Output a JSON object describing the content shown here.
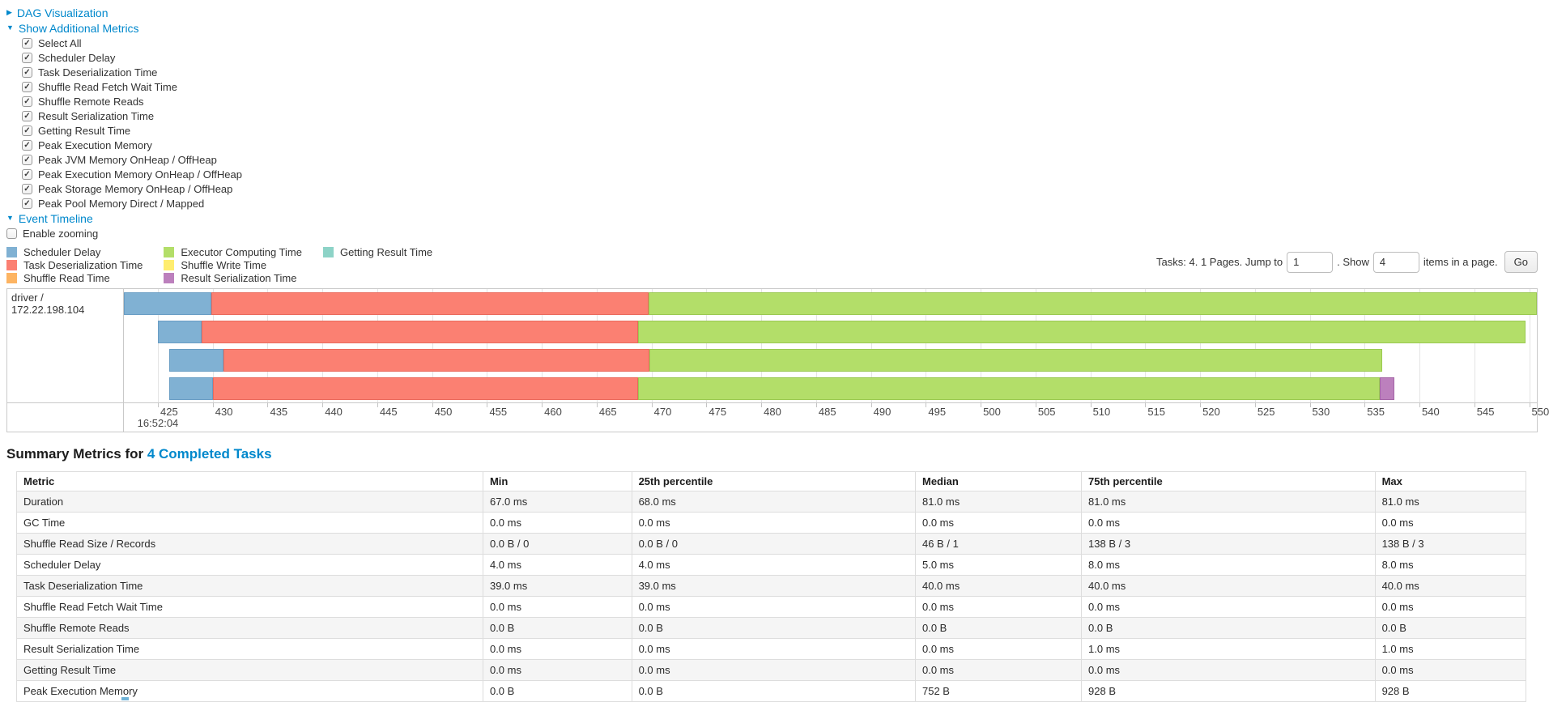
{
  "panels": {
    "dag": {
      "label": "DAG Visualization",
      "arrow": "▶"
    },
    "metrics": {
      "label": "Show Additional Metrics",
      "arrow": "▼",
      "items": [
        {
          "label": "Select All",
          "checked": true
        },
        {
          "label": "Scheduler Delay",
          "checked": true
        },
        {
          "label": "Task Deserialization Time",
          "checked": true
        },
        {
          "label": "Shuffle Read Fetch Wait Time",
          "checked": true
        },
        {
          "label": "Shuffle Remote Reads",
          "checked": true
        },
        {
          "label": "Result Serialization Time",
          "checked": true
        },
        {
          "label": "Getting Result Time",
          "checked": true
        },
        {
          "label": "Peak Execution Memory",
          "checked": true
        },
        {
          "label": "Peak JVM Memory OnHeap / OffHeap",
          "checked": true
        },
        {
          "label": "Peak Execution Memory OnHeap / OffHeap",
          "checked": true
        },
        {
          "label": "Peak Storage Memory OnHeap / OffHeap",
          "checked": true
        },
        {
          "label": "Peak Pool Memory Direct / Mapped",
          "checked": true
        }
      ]
    },
    "timeline": {
      "label": "Event Timeline",
      "arrow": "▼"
    },
    "enable_zooming": {
      "label": "Enable zooming",
      "checked": false
    }
  },
  "pagination": {
    "prefix": "Tasks: 4. 1 Pages. Jump to",
    "jump_value": "1",
    "mid": ". Show",
    "show_value": "4",
    "suffix": "items in a page.",
    "go_label": "Go"
  },
  "chart_data": {
    "type": "timeline-gantt",
    "group": "driver / 172.22.198.104",
    "legend_order": [
      "scheduler_delay",
      "task_deserialization",
      "shuffle_read",
      "executor_computing",
      "shuffle_write",
      "result_serialization",
      "getting_result"
    ],
    "phases": {
      "scheduler_delay": {
        "label": "Scheduler Delay",
        "color": "#80B1D3",
        "border": "#699dc4"
      },
      "task_deserialization": {
        "label": "Task Deserialization Time",
        "color": "#FB8072",
        "border": "#ea6a5c"
      },
      "shuffle_read": {
        "label": "Shuffle Read Time",
        "color": "#FDB462",
        "border": "#eda14c"
      },
      "executor_computing": {
        "label": "Executor Computing Time",
        "color": "#B3DE69",
        "border": "#9ac951"
      },
      "shuffle_write": {
        "label": "Shuffle Write Time",
        "color": "#FFED6F",
        "border": "#e8d659"
      },
      "result_serialization": {
        "label": "Result Serialization Time",
        "color": "#BC80BD",
        "border": "#a465a6"
      },
      "getting_result": {
        "label": "Getting Result Time",
        "color": "#8DD3C7",
        "border": "#74bdb0"
      }
    },
    "x_axis": {
      "min": 421.9,
      "max": 550.7,
      "first_tick": 425,
      "last_tick": 550,
      "tick_step": 5,
      "units": "ms within second shown below first tick",
      "time_label": "16:52:04",
      "grid": true
    },
    "tasks": [
      {
        "segments": [
          {
            "phase": "scheduler_delay",
            "start": 421.9,
            "end": 429.9
          },
          {
            "phase": "task_deserialization",
            "start": 429.9,
            "end": 469.7
          },
          {
            "phase": "executor_computing",
            "start": 469.7,
            "end": 550.7
          }
        ]
      },
      {
        "segments": [
          {
            "phase": "scheduler_delay",
            "start": 425.0,
            "end": 429.0
          },
          {
            "phase": "task_deserialization",
            "start": 429.0,
            "end": 468.8
          },
          {
            "phase": "executor_computing",
            "start": 468.8,
            "end": 549.7
          }
        ]
      },
      {
        "segments": [
          {
            "phase": "scheduler_delay",
            "start": 426.0,
            "end": 431.0
          },
          {
            "phase": "task_deserialization",
            "start": 431.0,
            "end": 469.8
          },
          {
            "phase": "executor_computing",
            "start": 469.8,
            "end": 536.6
          }
        ]
      },
      {
        "segments": [
          {
            "phase": "scheduler_delay",
            "start": 426.0,
            "end": 430.0
          },
          {
            "phase": "task_deserialization",
            "start": 430.0,
            "end": 468.8
          },
          {
            "phase": "executor_computing",
            "start": 468.8,
            "end": 536.4
          },
          {
            "phase": "result_serialization",
            "start": 536.4,
            "end": 537.7
          }
        ]
      }
    ]
  },
  "summary": {
    "title_prefix": "Summary Metrics for ",
    "title_link": "4 Completed Tasks",
    "table": {
      "columns": [
        "Metric",
        "Min",
        "25th percentile",
        "Median",
        "75th percentile",
        "Max"
      ],
      "col_widths_pct": [
        30.9,
        9.85,
        18.8,
        11.0,
        19.45,
        10.0
      ],
      "rows": [
        [
          "Duration",
          "67.0 ms",
          "68.0 ms",
          "81.0 ms",
          "81.0 ms",
          "81.0 ms"
        ],
        [
          "GC Time",
          "0.0 ms",
          "0.0 ms",
          "0.0 ms",
          "0.0 ms",
          "0.0 ms"
        ],
        [
          "Shuffle Read Size / Records",
          "0.0 B / 0",
          "0.0 B / 0",
          "46 B / 1",
          "138 B / 3",
          "138 B / 3"
        ],
        [
          "Scheduler Delay",
          "4.0 ms",
          "4.0 ms",
          "5.0 ms",
          "8.0 ms",
          "8.0 ms"
        ],
        [
          "Task Deserialization Time",
          "39.0 ms",
          "39.0 ms",
          "40.0 ms",
          "40.0 ms",
          "40.0 ms"
        ],
        [
          "Shuffle Read Fetch Wait Time",
          "0.0 ms",
          "0.0 ms",
          "0.0 ms",
          "0.0 ms",
          "0.0 ms"
        ],
        [
          "Shuffle Remote Reads",
          "0.0 B",
          "0.0 B",
          "0.0 B",
          "0.0 B",
          "0.0 B"
        ],
        [
          "Result Serialization Time",
          "0.0 ms",
          "0.0 ms",
          "0.0 ms",
          "1.0 ms",
          "1.0 ms"
        ],
        [
          "Getting Result Time",
          "0.0 ms",
          "0.0 ms",
          "0.0 ms",
          "0.0 ms",
          "0.0 ms"
        ],
        [
          "Peak Execution Memory",
          "0.0 B",
          "0.0 B",
          "752 B",
          "928 B",
          "928 B"
        ]
      ]
    }
  }
}
